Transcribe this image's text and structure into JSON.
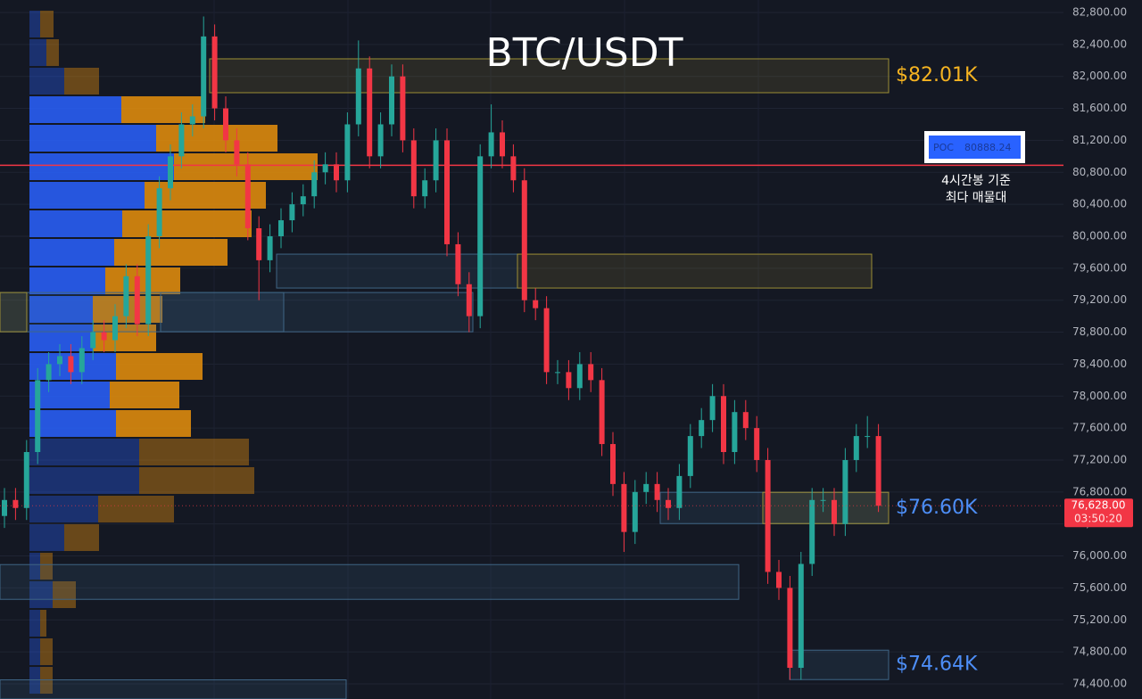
{
  "chart_data": {
    "type": "candlestick",
    "title": "BTC/USDT",
    "open": [
      76500,
      76700,
      76600,
      77300,
      78200,
      78400,
      78500,
      78300,
      78600,
      78800,
      78700,
      79000,
      79500,
      78900,
      80000,
      80600,
      81000,
      81400,
      81500,
      82500,
      81600,
      81200,
      80900,
      80100,
      79700,
      80000,
      80200,
      80400,
      80500,
      80800,
      80900,
      80700,
      81400,
      82100,
      81000,
      81400,
      82000,
      81200,
      80500,
      80700,
      81200,
      79900,
      79400,
      79000,
      81000,
      81300,
      81000,
      80700,
      79200,
      79100,
      78300,
      78300,
      78100,
      78400,
      78200,
      77400,
      76900,
      76300,
      76800,
      76900,
      76700,
      76600,
      77000,
      77500,
      77700,
      78000,
      77300,
      77800,
      77600,
      77200,
      75800,
      75600,
      74600,
      75900,
      76700,
      76700,
      76400,
      77200,
      77500,
      77500
    ],
    "high": [
      76850,
      76850,
      77450,
      78350,
      78550,
      78650,
      78650,
      78750,
      78950,
      78950,
      79150,
      79650,
      79650,
      80150,
      80750,
      81150,
      81550,
      81650,
      82750,
      82650,
      81750,
      81350,
      81050,
      80250,
      80150,
      80350,
      80550,
      80650,
      80950,
      81050,
      81050,
      81550,
      82450,
      82250,
      81550,
      82150,
      82150,
      81350,
      80850,
      81350,
      81350,
      80050,
      79550,
      81150,
      81650,
      81450,
      81150,
      80850,
      79350,
      79250,
      78450,
      78450,
      78550,
      78550,
      78350,
      77550,
      77050,
      76950,
      77050,
      77050,
      76850,
      77150,
      77650,
      77850,
      78150,
      78150,
      77950,
      77950,
      77750,
      77350,
      75950,
      75750,
      76050,
      76850,
      76850,
      76850,
      77350,
      77650,
      77750,
      77650
    ],
    "low": [
      76350,
      76450,
      76450,
      77150,
      78050,
      78250,
      78150,
      78150,
      78450,
      78550,
      78550,
      78850,
      78750,
      78750,
      79850,
      80450,
      80850,
      81250,
      81350,
      81450,
      81050,
      80750,
      79950,
      79200,
      79550,
      79850,
      80050,
      80250,
      80350,
      80650,
      80550,
      80550,
      81250,
      80850,
      80850,
      81250,
      81050,
      80350,
      80350,
      80550,
      79750,
      79250,
      78800,
      78850,
      80850,
      80850,
      80550,
      79050,
      78950,
      78150,
      78150,
      77950,
      77950,
      78050,
      77250,
      76750,
      76050,
      76150,
      76650,
      76550,
      76450,
      76450,
      76850,
      77350,
      77550,
      77150,
      77150,
      77450,
      77050,
      75650,
      75450,
      74450,
      74450,
      75750,
      76550,
      76250,
      76250,
      77050,
      77350,
      76550
    ],
    "close": [
      76700,
      76600,
      77300,
      78200,
      78400,
      78500,
      78300,
      78600,
      78800,
      78700,
      79000,
      79500,
      78900,
      80000,
      80600,
      81000,
      81400,
      81500,
      82500,
      81600,
      81200,
      80900,
      80100,
      79700,
      80000,
      80200,
      80400,
      80500,
      80800,
      80900,
      80700,
      81400,
      82100,
      81000,
      81400,
      82000,
      81200,
      80500,
      80700,
      81200,
      79900,
      79400,
      79000,
      81000,
      81300,
      81000,
      80700,
      79200,
      79100,
      78300,
      78300,
      78100,
      78400,
      78200,
      77400,
      76900,
      76300,
      76800,
      76900,
      76700,
      76600,
      77000,
      77500,
      77700,
      78000,
      77300,
      77800,
      77600,
      77200,
      75800,
      75600,
      74600,
      75900,
      76700,
      76700,
      76400,
      77200,
      77500,
      77500,
      76628
    ],
    "up_color": "#26a69a",
    "down_color": "#f23645",
    "ylim": [
      74210,
      82956
    ],
    "yticks": [
      {
        "value": 74400,
        "label": "74,400.00"
      },
      {
        "value": 74800,
        "label": "74,800.00"
      },
      {
        "value": 75200,
        "label": "75,200.00"
      },
      {
        "value": 75600,
        "label": "75,600.00"
      },
      {
        "value": 76000,
        "label": "76,000.00"
      },
      {
        "value": 76400,
        "label": "76,400.00"
      },
      {
        "value": 76800,
        "label": "76,800.00"
      },
      {
        "value": 77200,
        "label": "77,200.00"
      },
      {
        "value": 77600,
        "label": "77,600.00"
      },
      {
        "value": 78000,
        "label": "78,000.00"
      },
      {
        "value": 78400,
        "label": "78,400.00"
      },
      {
        "value": 78800,
        "label": "78,800.00"
      },
      {
        "value": 79200,
        "label": "79,200.00"
      },
      {
        "value": 79600,
        "label": "79,600.00"
      },
      {
        "value": 80000,
        "label": "80,000.00"
      },
      {
        "value": 80400,
        "label": "80,400.00"
      },
      {
        "value": 80800,
        "label": "80,800.00"
      },
      {
        "value": 81200,
        "label": "81,200.00"
      },
      {
        "value": 81600,
        "label": "81,600.00"
      },
      {
        "value": 82000,
        "label": "82,000.00"
      },
      {
        "value": 82400,
        "label": "82,400.00"
      },
      {
        "value": 82800,
        "label": "82,800.00"
      }
    ],
    "grid": true,
    "volume_profile": {
      "buy": [
        12,
        19,
        39,
        103,
        142,
        162,
        129,
        104,
        95,
        85,
        71,
        71,
        97,
        90,
        97,
        123,
        123,
        77,
        39,
        12,
        26,
        12,
        12,
        12
      ],
      "sell": [
        15,
        14,
        39,
        94,
        136,
        161,
        136,
        145,
        127,
        84,
        78,
        71,
        97,
        78,
        84,
        123,
        129,
        85,
        39,
        14,
        26,
        7,
        14,
        14
      ],
      "buy_color": "#2962ff",
      "sell_color": "#e8900c"
    },
    "poc": {
      "label": "POC",
      "value": 80888.24,
      "color": "#f23645",
      "note_lines": [
        "4시간봉 기준",
        "최다 매물대"
      ]
    },
    "zones": [
      {
        "top": 82220,
        "bottom": 81796,
        "color": "yellow"
      },
      {
        "top": 79776,
        "bottom": 79352,
        "color": "blue"
      },
      {
        "top": 79776,
        "bottom": 79352,
        "color": "yellow"
      },
      {
        "top": 79296,
        "bottom": 78805,
        "color": "blue"
      },
      {
        "top": 79296,
        "bottom": 78805,
        "color": "yellow"
      },
      {
        "top": 79296,
        "bottom": 78805,
        "color": "blue"
      },
      {
        "top": 76796,
        "bottom": 76405,
        "color": "blue"
      },
      {
        "top": 76796,
        "bottom": 76405,
        "color": "yellow"
      },
      {
        "top": 75892,
        "bottom": 75457,
        "color": "blue"
      },
      {
        "top": 74821,
        "bottom": 74453,
        "color": "blue"
      },
      {
        "top": 74450,
        "bottom": 74210,
        "color": "blue"
      }
    ],
    "last_price": {
      "value": 76628,
      "label": "76,628.00",
      "countdown": "03:50:20"
    },
    "price_labels": [
      {
        "value": 82010,
        "label": "$82.01K",
        "color": "#f5b321"
      },
      {
        "value": 76600,
        "label": "$76.60K",
        "color": "#4d8ef7"
      },
      {
        "value": 74640,
        "label": "$74.64K",
        "color": "#4d8ef7"
      }
    ]
  }
}
